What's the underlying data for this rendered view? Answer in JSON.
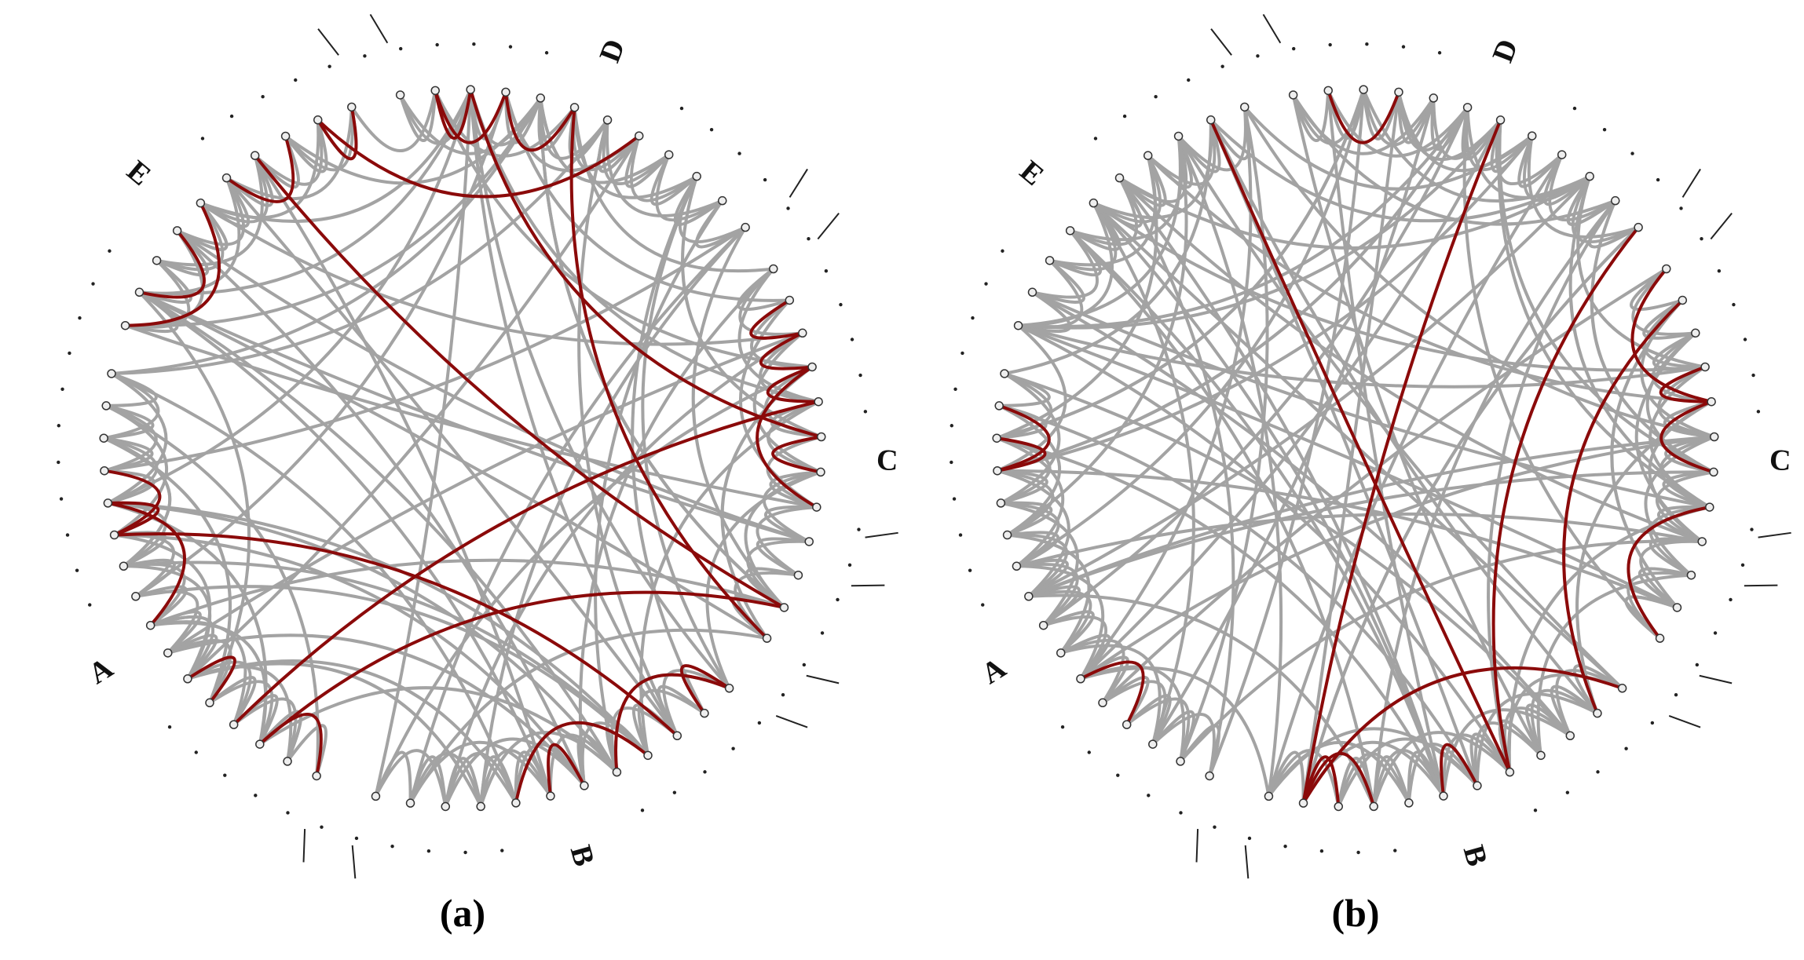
{
  "panels": [
    {
      "caption": "(a)",
      "groups": [
        "A",
        "B",
        "C",
        "D",
        "E"
      ]
    },
    {
      "caption": "(b)",
      "groups": [
        "A",
        "B",
        "C",
        "D",
        "E"
      ]
    }
  ]
}
